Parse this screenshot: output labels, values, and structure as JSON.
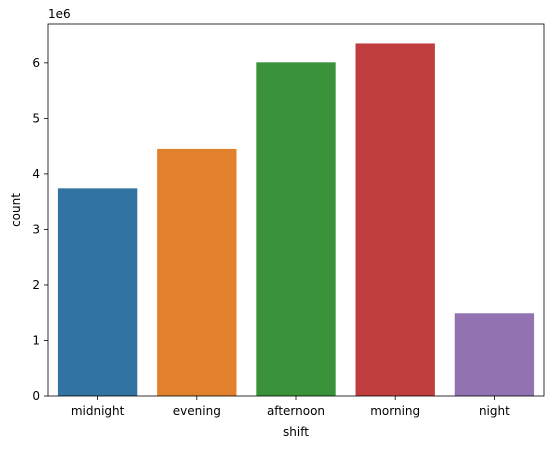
{
  "chart_data": {
    "type": "bar",
    "categories": [
      "midnight",
      "evening",
      "afternoon",
      "morning",
      "night"
    ],
    "values": [
      3740000,
      4450000,
      6010000,
      6350000,
      1490000
    ],
    "colors": [
      "#3274a1",
      "#e1812c",
      "#3a923a",
      "#c03d3e",
      "#9372b2"
    ],
    "xlabel": "shift",
    "ylabel": "count",
    "offset_label": "1e6",
    "ylim": [
      0,
      6700000
    ],
    "yticks": [
      0,
      1000000,
      2000000,
      3000000,
      4000000,
      5000000,
      6000000
    ],
    "ytick_labels": [
      "0",
      "1",
      "2",
      "3",
      "4",
      "5",
      "6"
    ],
    "grid": false,
    "legend": "none"
  }
}
